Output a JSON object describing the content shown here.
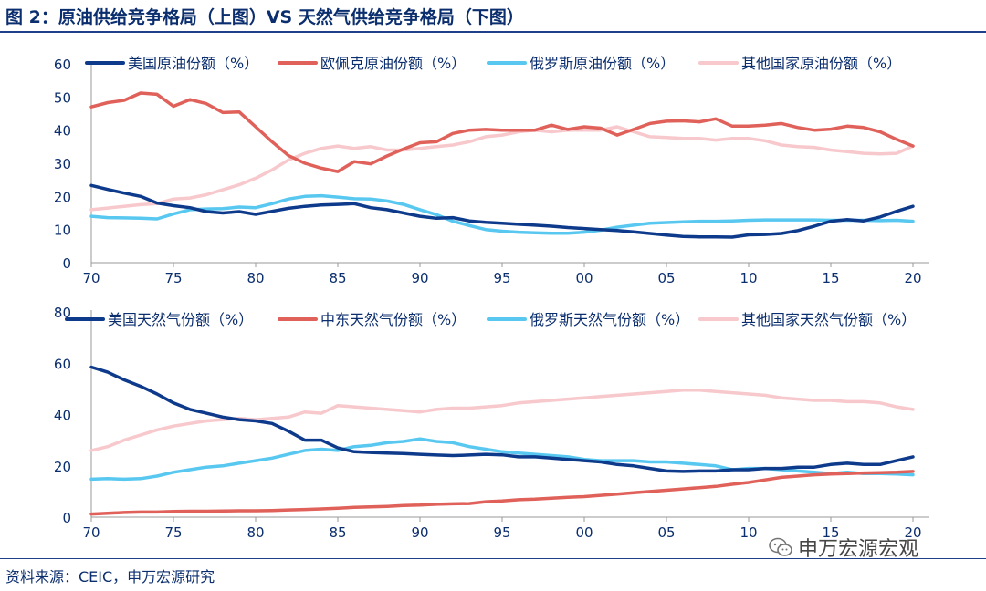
{
  "title": "图 2：原油供给竞争格局（上图）VS 天然气供给竞争格局（下图）",
  "source": "资料来源：CEIC，申万宏源研究",
  "watermark": "申万宏源宏观",
  "icons": {
    "watermark_logo": "wechat-logo-icon"
  },
  "chart_data": [
    {
      "type": "line",
      "legend_position": "top",
      "grid": false,
      "xlim": [
        1970,
        2021
      ],
      "ylim": [
        0,
        60
      ],
      "y_ticks": [
        "0",
        "10",
        "20",
        "30",
        "40",
        "50",
        "60"
      ],
      "x_ticks": [
        "70",
        "75",
        "80",
        "85",
        "90",
        "95",
        "00",
        "05",
        "10",
        "15",
        "20"
      ],
      "x": [
        1970,
        1971,
        1972,
        1973,
        1974,
        1975,
        1976,
        1977,
        1978,
        1979,
        1980,
        1981,
        1982,
        1983,
        1984,
        1985,
        1986,
        1987,
        1988,
        1989,
        1990,
        1991,
        1992,
        1993,
        1994,
        1995,
        1996,
        1997,
        1998,
        1999,
        2000,
        2001,
        2002,
        2003,
        2004,
        2005,
        2006,
        2007,
        2008,
        2009,
        2010,
        2011,
        2012,
        2013,
        2014,
        2015,
        2016,
        2017,
        2018,
        2019,
        2020
      ],
      "series": [
        {
          "name": "美国原油份额（%）",
          "color": "#0e3a8c",
          "values": [
            23.3,
            22.1,
            21.0,
            20.0,
            18.0,
            17.2,
            16.6,
            15.4,
            15.0,
            15.4,
            14.6,
            15.5,
            16.4,
            17.0,
            17.4,
            17.6,
            17.8,
            16.6,
            16.0,
            15.0,
            14.0,
            13.4,
            13.6,
            12.6,
            12.2,
            11.9,
            11.6,
            11.3,
            11.0,
            10.6,
            10.3,
            10.0,
            9.7,
            9.3,
            8.8,
            8.3,
            7.9,
            7.8,
            7.8,
            7.7,
            8.4,
            8.5,
            8.8,
            9.7,
            11.0,
            12.5,
            13.0,
            12.6,
            13.8,
            15.5,
            17.0
          ]
        },
        {
          "name": "欧佩克原油份额（%）",
          "color": "#e0605a",
          "values": [
            47.0,
            48.3,
            49.0,
            51.2,
            50.8,
            47.2,
            49.2,
            48.0,
            45.3,
            45.5,
            41.0,
            36.5,
            32.3,
            30.0,
            28.5,
            27.5,
            30.5,
            29.8,
            32.2,
            34.3,
            36.2,
            36.5,
            39.0,
            40.0,
            40.2,
            40.0,
            40.0,
            40.0,
            41.5,
            40.2,
            41.0,
            40.6,
            38.5,
            40.2,
            42.0,
            42.7,
            42.8,
            42.5,
            43.4,
            41.2,
            41.2,
            41.5,
            42.0,
            40.8,
            40.0,
            40.3,
            41.2,
            40.8,
            39.5,
            37.2,
            35.2
          ]
        },
        {
          "name": "俄罗斯原油份额（%）",
          "color": "#58c8f0",
          "values": [
            14.0,
            13.6,
            13.5,
            13.4,
            13.2,
            14.7,
            16.0,
            16.2,
            16.3,
            16.8,
            16.6,
            17.8,
            19.2,
            20.0,
            20.2,
            19.8,
            19.3,
            19.2,
            18.6,
            17.6,
            16.0,
            14.5,
            12.5,
            11.2,
            10.0,
            9.5,
            9.2,
            9.0,
            8.9,
            8.9,
            9.2,
            9.8,
            10.7,
            11.3,
            11.9,
            12.1,
            12.3,
            12.5,
            12.5,
            12.6,
            12.8,
            12.9,
            12.9,
            12.9,
            12.9,
            12.8,
            12.8,
            12.8,
            12.7,
            12.8,
            12.5
          ]
        },
        {
          "name": "其他国家原油份额（%）",
          "color": "#f7c8cc",
          "values": [
            16.0,
            16.5,
            17.0,
            17.5,
            17.8,
            19.2,
            19.5,
            20.5,
            22.0,
            23.5,
            25.5,
            28.0,
            31.0,
            33.0,
            34.5,
            35.2,
            34.5,
            35.0,
            34.0,
            34.0,
            34.5,
            35.0,
            35.5,
            36.5,
            38.0,
            38.5,
            39.5,
            40.0,
            39.5,
            40.0,
            40.0,
            40.0,
            41.0,
            39.5,
            38.0,
            37.8,
            37.5,
            37.5,
            37.0,
            37.5,
            37.5,
            36.8,
            35.5,
            35.0,
            34.8,
            34.0,
            33.5,
            33.0,
            32.8,
            33.0,
            35.2
          ]
        }
      ]
    },
    {
      "type": "line",
      "legend_position": "top",
      "grid": false,
      "xlim": [
        1970,
        2021
      ],
      "ylim": [
        0,
        80
      ],
      "y_ticks": [
        "0",
        "20",
        "40",
        "60",
        "80"
      ],
      "x_ticks": [
        "70",
        "75",
        "80",
        "85",
        "90",
        "95",
        "00",
        "05",
        "10",
        "15",
        "20"
      ],
      "x": [
        1970,
        1971,
        1972,
        1973,
        1974,
        1975,
        1976,
        1977,
        1978,
        1979,
        1980,
        1981,
        1982,
        1983,
        1984,
        1985,
        1986,
        1987,
        1988,
        1989,
        1990,
        1991,
        1992,
        1993,
        1994,
        1995,
        1996,
        1997,
        1998,
        1999,
        2000,
        2001,
        2002,
        2003,
        2004,
        2005,
        2006,
        2007,
        2008,
        2009,
        2010,
        2011,
        2012,
        2013,
        2014,
        2015,
        2016,
        2017,
        2018,
        2019,
        2020
      ],
      "series": [
        {
          "name": "美国天然气份额（%）",
          "color": "#0e3a8c",
          "values": [
            58.5,
            56.5,
            53.5,
            51.0,
            48.0,
            44.5,
            42.0,
            40.5,
            39.0,
            38.0,
            37.5,
            36.5,
            33.5,
            30.0,
            30.0,
            27.0,
            25.5,
            25.2,
            25.0,
            24.8,
            24.5,
            24.2,
            24.0,
            24.2,
            24.5,
            24.3,
            23.5,
            23.5,
            23.0,
            22.5,
            22.0,
            21.5,
            20.5,
            20.0,
            19.0,
            18.0,
            17.8,
            18.0,
            18.0,
            18.5,
            18.5,
            19.0,
            19.0,
            19.5,
            19.5,
            20.5,
            21.0,
            20.5,
            20.5,
            22.0,
            23.5
          ]
        },
        {
          "name": "中东天然气份额（%）",
          "color": "#e0605a",
          "values": [
            1.2,
            1.5,
            1.8,
            2.0,
            2.0,
            2.2,
            2.3,
            2.3,
            2.4,
            2.5,
            2.5,
            2.6,
            2.8,
            3.0,
            3.2,
            3.5,
            3.8,
            4.0,
            4.2,
            4.5,
            4.7,
            5.0,
            5.2,
            5.3,
            6.0,
            6.3,
            6.8,
            7.0,
            7.4,
            7.7,
            8.0,
            8.5,
            9.0,
            9.5,
            10.0,
            10.5,
            11.0,
            11.5,
            12.0,
            12.8,
            13.5,
            14.5,
            15.5,
            16.0,
            16.5,
            16.8,
            17.0,
            17.2,
            17.3,
            17.5,
            17.8
          ]
        },
        {
          "name": "俄罗斯天然气份额（%）",
          "color": "#58c8f0",
          "values": [
            14.8,
            15.0,
            14.8,
            15.0,
            16.0,
            17.5,
            18.5,
            19.5,
            20.0,
            21.0,
            22.0,
            23.0,
            24.5,
            26.0,
            26.5,
            26.0,
            27.5,
            28.0,
            29.0,
            29.5,
            30.5,
            29.5,
            29.0,
            27.5,
            26.5,
            25.5,
            25.0,
            24.5,
            24.0,
            23.5,
            22.5,
            22.0,
            22.0,
            22.0,
            21.5,
            21.5,
            21.0,
            20.5,
            20.0,
            18.5,
            19.0,
            19.0,
            18.5,
            18.0,
            17.5,
            17.0,
            17.5,
            17.0,
            17.0,
            16.8,
            16.5
          ]
        },
        {
          "name": "其他国家天然气份额（%）",
          "color": "#f7c8cc",
          "values": [
            26.0,
            27.5,
            30.0,
            32.0,
            34.0,
            35.5,
            36.5,
            37.5,
            38.0,
            38.5,
            38.0,
            38.5,
            39.0,
            41.0,
            40.5,
            43.5,
            43.0,
            42.5,
            42.0,
            41.5,
            41.0,
            42.0,
            42.5,
            42.5,
            43.0,
            43.5,
            44.5,
            45.0,
            45.5,
            46.0,
            46.5,
            47.0,
            47.5,
            48.0,
            48.5,
            49.0,
            49.5,
            49.5,
            49.0,
            48.5,
            48.0,
            47.5,
            46.5,
            46.0,
            45.5,
            45.5,
            45.0,
            45.0,
            44.5,
            43.0,
            42.0
          ]
        }
      ]
    }
  ]
}
